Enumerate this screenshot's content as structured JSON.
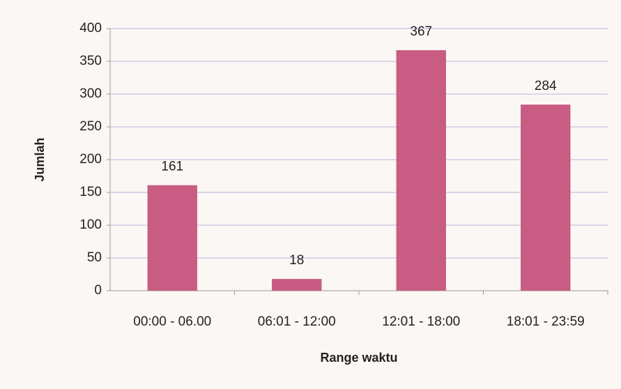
{
  "chart_data": {
    "type": "bar",
    "x_label": "Range waktu",
    "y_label": "Jumlah",
    "categories": [
      "00:00 - 06.00",
      "06:01 - 12:00",
      "12:01 - 18:00",
      "18:01 - 23:59"
    ],
    "values": [
      161,
      18,
      367,
      284
    ],
    "color": "#c85c82",
    "ylim": [
      0,
      400
    ],
    "yticks": [
      0,
      50,
      100,
      150,
      200,
      250,
      300,
      350,
      400
    ],
    "grid": true
  }
}
